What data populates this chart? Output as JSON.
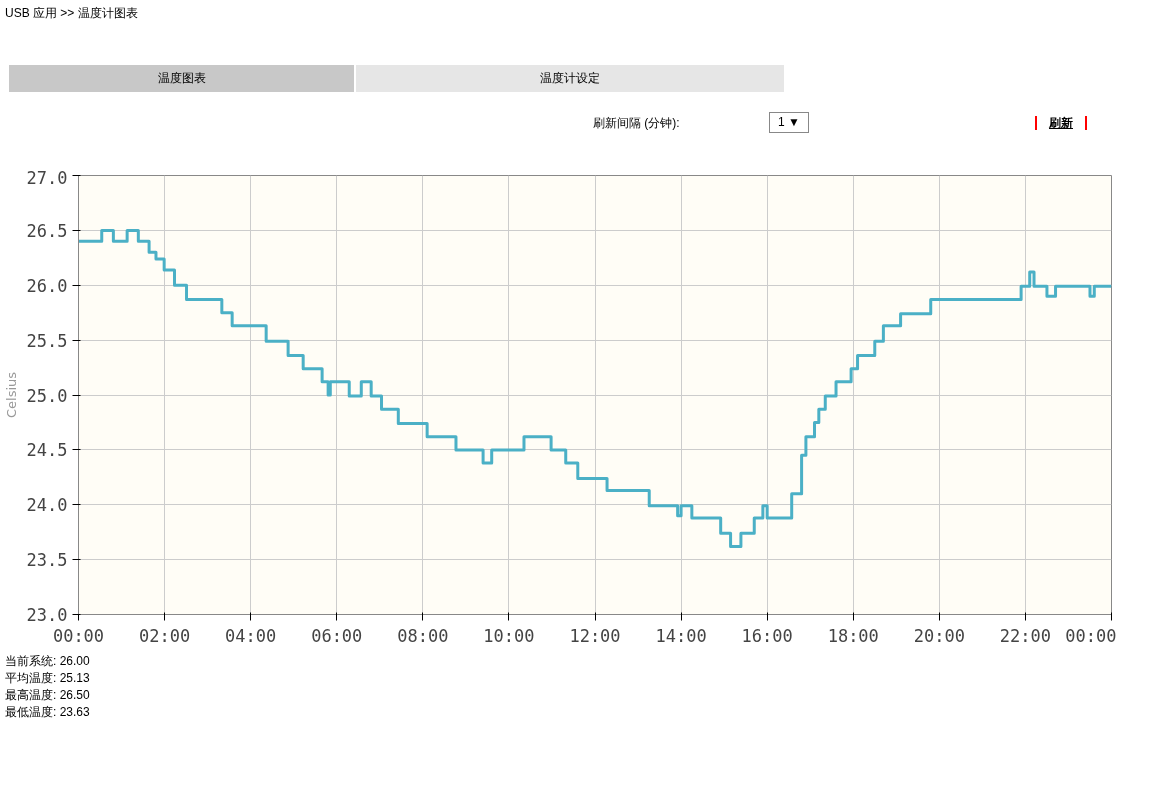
{
  "chart_data": {
    "type": "step",
    "title": "USB 应用 >> 温度计图表",
    "ylabel": "Celsius",
    "annotations": [
      "温度图表",
      "温度计设定",
      "刷新间隔 (分钟):",
      "1 ▼",
      "刷新",
      "当前系统: 26.00",
      "平均温度: 25.13",
      "最高温度: 26.50",
      "最低温度: 23.63"
    ],
    "x": [
      0,
      0.54,
      0.81,
      1.13,
      1.39,
      1.64,
      1.8,
      1.99,
      2.23,
      2.51,
      3.33,
      3.57,
      4.36,
      4.87,
      5.22,
      5.66,
      5.8,
      5.85,
      6.29,
      6.57,
      6.8,
      7.04,
      7.43,
      8.1,
      8.77,
      9.4,
      9.6,
      10.35,
      10.98,
      11.32,
      11.6,
      12.28,
      13.26,
      13.92,
      14.0,
      14.25,
      14.92,
      15.15,
      15.39,
      15.7,
      15.9,
      16.0,
      16.57,
      16.8,
      16.9,
      17.1,
      17.2,
      17.35,
      17.6,
      17.95,
      18.1,
      18.5,
      18.7,
      19.1,
      19.8,
      21.9,
      22.1,
      22.2,
      22.5,
      22.7,
      23.5,
      23.6,
      24
    ],
    "series": [
      {
        "color": "#4bb0c6",
        "values": [
          26.4,
          26.5,
          26.4,
          26.5,
          26.4,
          26.3,
          26.24,
          26.14,
          26.0,
          25.87,
          25.75,
          25.63,
          25.49,
          25.36,
          25.24,
          25.12,
          25.0,
          25.12,
          24.99,
          25.12,
          24.99,
          24.87,
          24.74,
          24.62,
          24.5,
          24.38,
          24.5,
          24.62,
          24.5,
          24.38,
          24.24,
          24.13,
          23.99,
          23.9,
          23.99,
          23.88,
          23.74,
          23.62,
          23.74,
          23.88,
          23.99,
          23.88,
          24.1,
          24.45,
          24.62,
          24.75,
          24.87,
          24.99,
          25.12,
          25.24,
          25.36,
          25.49,
          25.63,
          25.74,
          25.87,
          25.99,
          26.12,
          25.99,
          25.9,
          25.99,
          25.9,
          25.99,
          25.99
        ]
      }
    ],
    "xlim": [
      0,
      24
    ],
    "ylim": [
      23,
      27
    ],
    "xticks": [
      {
        "value": 0,
        "label": "00:00"
      },
      {
        "value": 2,
        "label": "02:00"
      },
      {
        "value": 4,
        "label": "04:00"
      },
      {
        "value": 6,
        "label": "06:00"
      },
      {
        "value": 8,
        "label": "08:00"
      },
      {
        "value": 10,
        "label": "10:00"
      },
      {
        "value": 12,
        "label": "12:00"
      },
      {
        "value": 14,
        "label": "14:00"
      },
      {
        "value": 16,
        "label": "16:00"
      },
      {
        "value": 18,
        "label": "18:00"
      },
      {
        "value": 20,
        "label": "20:00"
      },
      {
        "value": 22,
        "label": "22:00"
      },
      {
        "value": 24,
        "label": "00:00"
      }
    ],
    "yticks": [
      {
        "value": 23,
        "label": "23.0"
      },
      {
        "value": 23.5,
        "label": "23.5"
      },
      {
        "value": 24,
        "label": "24.0"
      },
      {
        "value": 24.5,
        "label": "24.5"
      },
      {
        "value": 25,
        "label": "25.0"
      },
      {
        "value": 25.5,
        "label": "25.5"
      },
      {
        "value": 26,
        "label": "26.0"
      },
      {
        "value": 26.5,
        "label": "26.5"
      },
      {
        "value": 27,
        "label": "27.0"
      }
    ],
    "grid": true
  }
}
